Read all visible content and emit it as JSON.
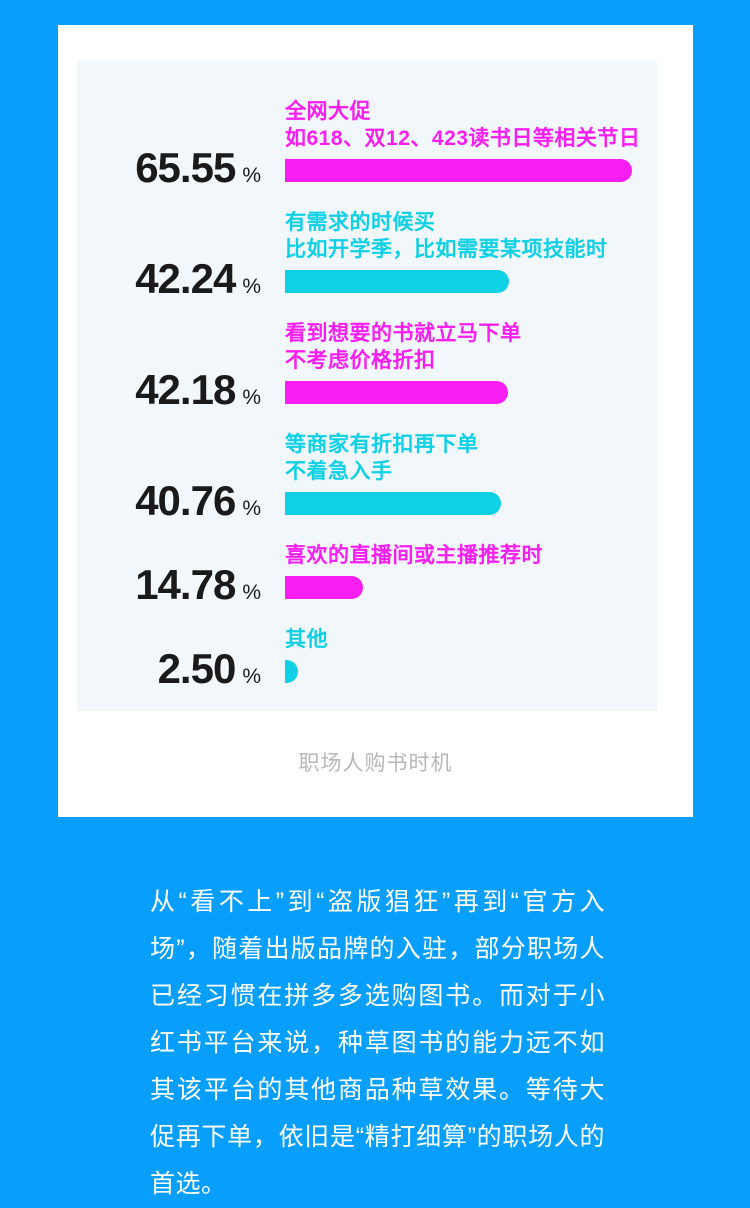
{
  "colors": {
    "background": "#089ffc",
    "card": "#ffffff",
    "panel": "#f2f7fc",
    "magenta": "#f81ef2",
    "cyan": "#0fd0e4",
    "number_text": "#1a1a1a",
    "caption_text": "#b5b7ba",
    "commentary_text": "#ffffff"
  },
  "chart_data": {
    "type": "bar",
    "orientation": "horizontal",
    "title": "职场人购书时机",
    "unit": "%",
    "value_axis_max": 70,
    "grid": false,
    "legend": false,
    "items": [
      {
        "value": "65.55",
        "label_lines": [
          "全网大促",
          "如618、双12、423读书日等相关节日"
        ],
        "color": "magenta"
      },
      {
        "value": "42.24",
        "label_lines": [
          "有需求的时候买",
          "比如开学季，比如需要某项技能时"
        ],
        "color": "cyan"
      },
      {
        "value": "42.18",
        "label_lines": [
          "看到想要的书就立马下单",
          "不考虑价格折扣"
        ],
        "color": "magenta"
      },
      {
        "value": "40.76",
        "label_lines": [
          "等商家有折扣再下单",
          "不着急入手"
        ],
        "color": "cyan"
      },
      {
        "value": "14.78",
        "label_lines": [
          "喜欢的直播间或主播推荐时"
        ],
        "color": "magenta"
      },
      {
        "value": "2.50",
        "label_lines": [
          "其他"
        ],
        "color": "cyan"
      }
    ]
  },
  "commentary": {
    "text": "从“看不上”到“盗版猖狂”再到“官方入场”，随着出版品牌的入驻，部分职场人已经习惯在拼多多选购图书。而对于小红书平台来说，种草图书的能力远不如其该平台的其他商品种草效果。等待大促再下单，依旧是“精打细算”的职场人的首选。"
  }
}
